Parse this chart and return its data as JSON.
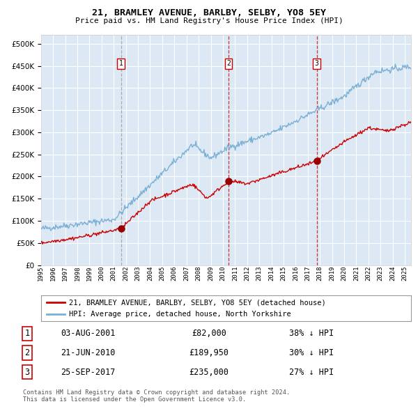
{
  "title": "21, BRAMLEY AVENUE, BARLBY, SELBY, YO8 5EY",
  "subtitle": "Price paid vs. HM Land Registry's House Price Index (HPI)",
  "xlim": [
    1995.0,
    2025.5
  ],
  "ylim": [
    0,
    520000
  ],
  "yticks": [
    0,
    50000,
    100000,
    150000,
    200000,
    250000,
    300000,
    350000,
    400000,
    450000,
    500000
  ],
  "ytick_labels": [
    "£0",
    "£50K",
    "£100K",
    "£150K",
    "£200K",
    "£250K",
    "£300K",
    "£350K",
    "£400K",
    "£450K",
    "£500K"
  ],
  "xticks": [
    1995,
    1996,
    1997,
    1998,
    1999,
    2000,
    2001,
    2002,
    2003,
    2004,
    2005,
    2006,
    2007,
    2008,
    2009,
    2010,
    2011,
    2012,
    2013,
    2014,
    2015,
    2016,
    2017,
    2018,
    2019,
    2020,
    2021,
    2022,
    2023,
    2024,
    2025
  ],
  "bg_color": "#dce9f5",
  "grid_color": "#ffffff",
  "red_line_color": "#cc0000",
  "blue_line_color": "#7bafd4",
  "vline_color_1": "#aaaaaa",
  "vline_color_23": "#cc3333",
  "marker_color": "#990000",
  "sale1_x": 2001.59,
  "sale1_y": 82000,
  "sale2_x": 2010.47,
  "sale2_y": 189950,
  "sale3_x": 2017.73,
  "sale3_y": 235000,
  "legend_label_red": "21, BRAMLEY AVENUE, BARLBY, SELBY, YO8 5EY (detached house)",
  "legend_label_blue": "HPI: Average price, detached house, North Yorkshire",
  "table_rows": [
    {
      "num": "1",
      "date": "03-AUG-2001",
      "price": "£82,000",
      "hpi": "38% ↓ HPI"
    },
    {
      "num": "2",
      "date": "21-JUN-2010",
      "price": "£189,950",
      "hpi": "30% ↓ HPI"
    },
    {
      "num": "3",
      "date": "25-SEP-2017",
      "price": "£235,000",
      "hpi": "27% ↓ HPI"
    }
  ],
  "footer": "Contains HM Land Registry data © Crown copyright and database right 2024.\nThis data is licensed under the Open Government Licence v3.0."
}
